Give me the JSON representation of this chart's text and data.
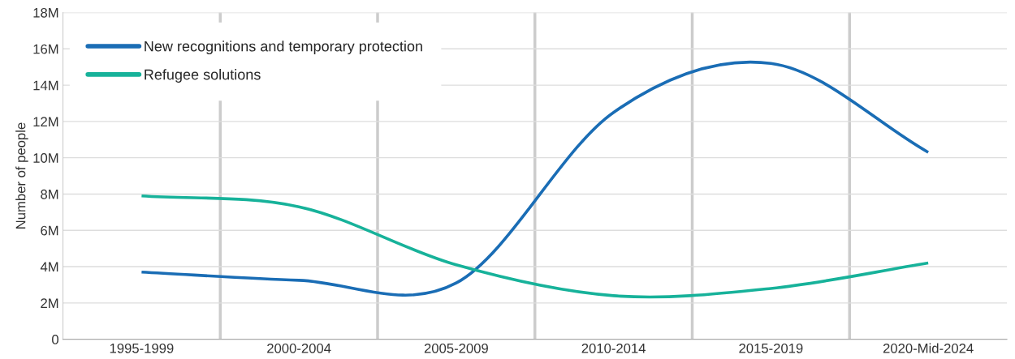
{
  "chart_data": {
    "type": "line",
    "ylabel": "Number of people",
    "categories": [
      "1995-1999",
      "2000-2004",
      "2005-2009",
      "2010-2014",
      "2015-2019",
      "2020-Mid-2024"
    ],
    "series": [
      {
        "name": "New recognitions and temporary protection",
        "color": "#1a6db5",
        "values": [
          3700000,
          3250000,
          3100000,
          12500000,
          15200000,
          10300000
        ]
      },
      {
        "name": "Refugee solutions",
        "color": "#17b29a",
        "values": [
          7900000,
          7300000,
          4100000,
          2400000,
          2800000,
          4200000
        ]
      }
    ],
    "ylim": [
      0,
      18000000
    ],
    "yticks": [
      0,
      {
        "value": 2000000,
        "label": "2M"
      },
      {
        "value": 4000000,
        "label": "4M"
      },
      {
        "value": 6000000,
        "label": "6M"
      },
      {
        "value": 8000000,
        "label": "8M"
      },
      {
        "value": 10000000,
        "label": "10M"
      },
      {
        "value": 12000000,
        "label": "12M"
      },
      {
        "value": 14000000,
        "label": "14M"
      },
      {
        "value": 16000000,
        "label": "16M"
      },
      {
        "value": 18000000,
        "label": "18M"
      }
    ],
    "grid": true,
    "legend": "top left",
    "marker": "none",
    "line_style": "solid"
  }
}
